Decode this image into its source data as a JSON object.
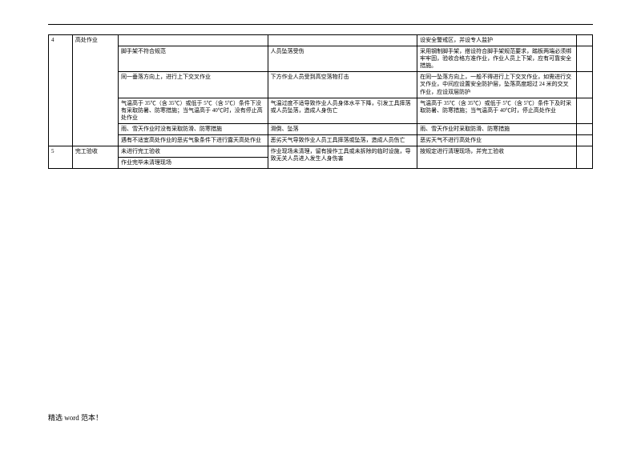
{
  "footer": "精选 word 范本！",
  "section4": {
    "num": "4",
    "category": "高处作业",
    "rows": [
      {
        "item": "",
        "risk": "",
        "measure": "设安全警戒区，并设专人监护",
        "last": ""
      },
      {
        "item": "脚手架不符合规范",
        "risk": "人员坠落受伤",
        "measure": "采用钢制脚手架，搭设符合脚手架规范要求，踏板两端必须绑牢牢固，验收合格方准作业，作业人员上下架，应有可靠安全措施。",
        "last": ""
      },
      {
        "item": "同一垂落方向上，进行上下交叉作业",
        "risk": "下方作业人员受到高空落物打击",
        "measure": "在同一坠落方向上，一般不得进行上下交叉作业，如需进行交叉作业，中间应设置安全防护层，坠落高度超过 24 米的交叉作业，应设双层防护",
        "last": ""
      },
      {
        "item": "气温高于 35℃（含 35℃）或低于 5℃（含 5℃）条件下没有采取防暑、防寒措施；当气温高于 40℃时，没有停止高处作业",
        "risk": "气温过度不适导致作业人员身体水平下降，引发工具摔落或人员坠落，造成人身伤亡",
        "measure": "气温高于 35℃（含 35℃）或低于 5℃（含 5℃）条件下及时采取防暑、防寒措施；当气温高于 40℃时，停止高处作业",
        "last": ""
      },
      {
        "item": "雨、雪天作业时没有采取防滑、防寒措施",
        "risk": "滑倒、坠落",
        "measure": "雨、雪天作业时采取防滑、防寒措施",
        "last": ""
      },
      {
        "item": "遇有不适宜高处作业的恶劣气象条件下进行露天高处作业",
        "risk": "恶劣天气导致作业人员工具摔落或坠落，造成人员伤亡",
        "measure": "恶劣天气不进行高处作业",
        "last": ""
      }
    ]
  },
  "section5": {
    "num": "5",
    "category": "完工验收",
    "rows": [
      {
        "item": "未进行完工验收",
        "risk": "作业现场未清理，留有操作工具或未拆除的临时设施，导致无关人员进入发生人身伤害",
        "measure": "按规定进行清理现场，并完工验收",
        "last": ""
      },
      {
        "item": "作业完毕未清理现场",
        "risk": "",
        "measure": "",
        "last": ""
      }
    ]
  }
}
